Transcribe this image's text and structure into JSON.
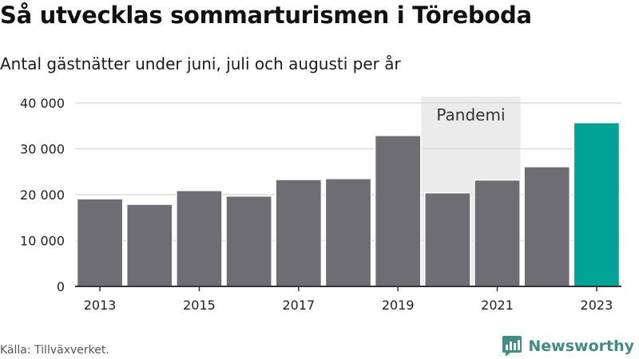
{
  "title": "Så utvecklas sommarturismen i Töreboda",
  "subtitle": "Antal gästnätter under juni, juli och augusti per år",
  "source": "Källa: Tillväxverket.",
  "brand": {
    "name": "Newsworthy",
    "icon": "newsworthy-logo-icon",
    "color": "#3d8f85"
  },
  "chart_data": {
    "type": "bar",
    "categories": [
      "2013",
      "2014",
      "2015",
      "2016",
      "2017",
      "2018",
      "2019",
      "2020",
      "2021",
      "2022",
      "2023"
    ],
    "values": [
      19100,
      17900,
      20900,
      19700,
      23300,
      23500,
      32900,
      20400,
      23200,
      26100,
      35700
    ],
    "ylim": [
      0,
      40000
    ],
    "yticks": [
      0,
      10000,
      20000,
      30000,
      40000
    ],
    "ytick_labels": [
      "0",
      "10 000",
      "20 000",
      "30 000",
      "40 000"
    ],
    "xtick_labels": [
      "2013",
      "2015",
      "2017",
      "2019",
      "2021",
      "2023"
    ],
    "grid": true,
    "highlight": {
      "category": "2023",
      "color": "#00a396"
    },
    "bar_color": "#6e6d73",
    "annotation": {
      "label": "Pandemi",
      "from": "2020",
      "to": "2021",
      "color": "#ebebeb"
    }
  }
}
